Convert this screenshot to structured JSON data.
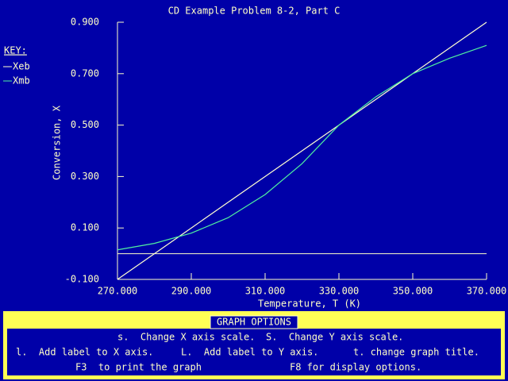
{
  "chart_data": {
    "type": "line",
    "title": "CD Example Problem 8-2, Part C",
    "x_label": "Temperature, T (K)",
    "y_label": "Conversion, X",
    "legend_title": "KEY:",
    "x": [
      270,
      280,
      290,
      300,
      310,
      320,
      330,
      340,
      350,
      360,
      370
    ],
    "series": [
      {
        "name": "Xeb",
        "color": "#ffffd0",
        "values": [
          -0.1,
          0.0,
          0.1,
          0.2,
          0.3,
          0.4,
          0.5,
          0.6,
          0.7,
          0.8,
          0.9
        ]
      },
      {
        "name": "Xmb",
        "color": "#50f0a0",
        "values": [
          0.015,
          0.04,
          0.08,
          0.14,
          0.23,
          0.35,
          0.5,
          0.61,
          0.7,
          0.76,
          0.81
        ]
      }
    ],
    "xlim": [
      270,
      370
    ],
    "xticks": [
      {
        "value": 270,
        "label": "270.000"
      },
      {
        "value": 290,
        "label": "290.000"
      },
      {
        "value": 310,
        "label": "310.000"
      },
      {
        "value": 330,
        "label": "330.000"
      },
      {
        "value": 350,
        "label": "350.000"
      },
      {
        "value": 370,
        "label": "370.000"
      }
    ],
    "ylim": [
      -0.1,
      0.9
    ],
    "yticks": [
      {
        "value": -0.1,
        "label": "-0.100"
      },
      {
        "value": 0.1,
        "label": "0.100"
      },
      {
        "value": 0.3,
        "label": "0.300"
      },
      {
        "value": 0.5,
        "label": "0.500"
      },
      {
        "value": 0.7,
        "label": "0.700"
      },
      {
        "value": 0.9,
        "label": "0.900"
      }
    ],
    "hline": 0
  },
  "panel": {
    "title": "GRAPH OPTIONS",
    "lines": [
      [
        "s.  Change X axis scale.",
        "S.  Change Y axis scale."
      ],
      [
        "l.  Add label to X axis.",
        "L.  Add label to Y axis.",
        "t. change graph title."
      ],
      [
        "F3  to print the graph",
        "F8 for display options."
      ]
    ]
  }
}
